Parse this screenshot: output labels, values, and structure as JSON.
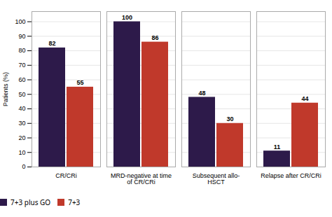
{
  "chart_data": {
    "type": "bar",
    "categories": [
      "CR/CRi",
      "MRD-negative at time\nof CR/CRi",
      "Subsequent allo-\nHSCT",
      "Relapse after CR/CRi"
    ],
    "series": [
      {
        "name": "7+3 plus GO",
        "color": "#2d1a4a",
        "values": [
          82,
          100,
          48,
          11
        ]
      },
      {
        "name": "7+3",
        "color": "#c0392b",
        "values": [
          55,
          86,
          30,
          44
        ]
      }
    ],
    "ylabel": "Patients (%)",
    "ylim": [
      0,
      107
    ],
    "yticks": [
      0,
      10,
      20,
      30,
      40,
      50,
      60,
      70,
      80,
      90,
      100
    ],
    "grid": true,
    "legend": "bottom",
    "data_labels": true
  }
}
